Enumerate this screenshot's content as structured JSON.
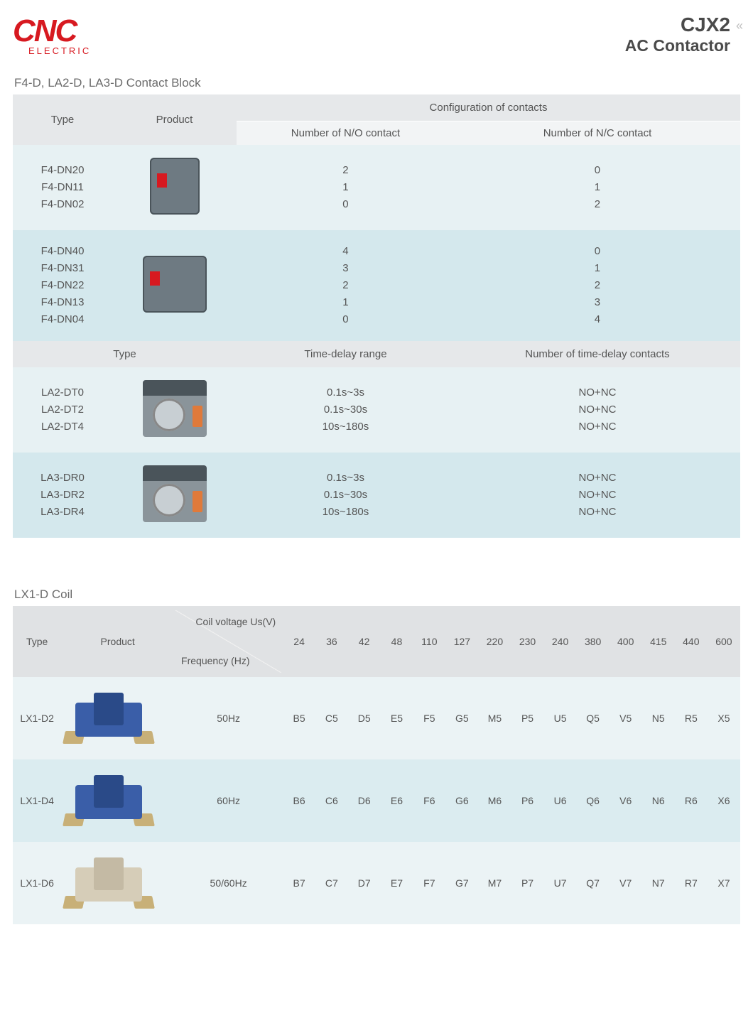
{
  "header": {
    "brand_main": "CNC",
    "brand_sub": "ELECTRIC",
    "title_line1": "CJX2",
    "title_line2": "AC Contactor",
    "arrows": "«"
  },
  "section1": {
    "title": "F4-D, LA2-D, LA3-D Contact Block",
    "cols": {
      "type": "Type",
      "product": "Product",
      "config": "Configuration of contacts",
      "no": "Number of N/O contact",
      "nc": "Number of N/C contact",
      "delay_range": "Time-delay range",
      "delay_contacts": "Number of time-delay contacts"
    },
    "row1": {
      "types": [
        "F4-DN20",
        "F4-DN11",
        "F4-DN02"
      ],
      "no": [
        "2",
        "1",
        "0"
      ],
      "nc": [
        "0",
        "1",
        "2"
      ]
    },
    "row2": {
      "types": [
        "F4-DN40",
        "F4-DN31",
        "F4-DN22",
        "F4-DN13",
        "F4-DN04"
      ],
      "no": [
        "4",
        "3",
        "2",
        "1",
        "0"
      ],
      "nc": [
        "0",
        "1",
        "2",
        "3",
        "4"
      ]
    },
    "row3": {
      "types": [
        "LA2-DT0",
        "LA2-DT2",
        "LA2-DT4"
      ],
      "range": [
        "0.1s~3s",
        "0.1s~30s",
        "10s~180s"
      ],
      "contacts": [
        "NO+NC",
        "NO+NC",
        "NO+NC"
      ]
    },
    "row4": {
      "types": [
        "LA3-DR0",
        "LA3-DR2",
        "LA3-DR4"
      ],
      "range": [
        "0.1s~3s",
        "0.1s~30s",
        "10s~180s"
      ],
      "contacts": [
        "NO+NC",
        "NO+NC",
        "NO+NC"
      ]
    }
  },
  "section2": {
    "title": "LX1-D Coil",
    "cols": {
      "type": "Type",
      "product": "Product",
      "voltage": "Coil voltage Us(V)",
      "freq": "Frequency (Hz)"
    },
    "voltages": [
      "24",
      "36",
      "42",
      "48",
      "110",
      "127",
      "220",
      "230",
      "240",
      "380",
      "400",
      "415",
      "440",
      "600"
    ],
    "rows": [
      {
        "type": "LX1-D2",
        "freq": "50Hz",
        "codes": [
          "B5",
          "C5",
          "D5",
          "E5",
          "F5",
          "G5",
          "M5",
          "P5",
          "U5",
          "Q5",
          "V5",
          "N5",
          "R5",
          "X5"
        ]
      },
      {
        "type": "LX1-D4",
        "freq": "60Hz",
        "codes": [
          "B6",
          "C6",
          "D6",
          "E6",
          "F6",
          "G6",
          "M6",
          "P6",
          "U6",
          "Q6",
          "V6",
          "N6",
          "R6",
          "X6"
        ]
      },
      {
        "type": "LX1-D6",
        "freq": "50/60Hz",
        "codes": [
          "B7",
          "C7",
          "D7",
          "E7",
          "F7",
          "G7",
          "M7",
          "P7",
          "U7",
          "Q7",
          "V7",
          "N7",
          "R7",
          "X7"
        ]
      }
    ]
  },
  "colors": {
    "brand_red": "#d71920",
    "header_grey": "#e6e8ea",
    "subheader_grey": "#f2f4f5",
    "band_a": "#e7f1f3",
    "band_b": "#d4e8ed",
    "text": "#555555"
  }
}
